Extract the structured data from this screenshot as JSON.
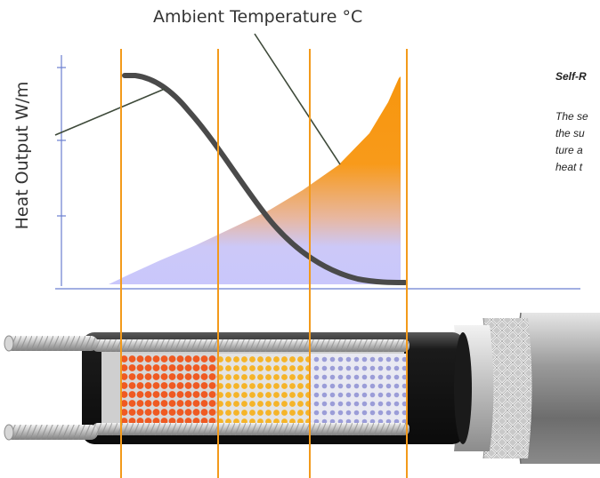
{
  "diagram": {
    "title": "Ambient Temperature °C",
    "y_axis_label": "Heat Output W/m",
    "side_heading": "Self-R",
    "side_lines": [
      "The se",
      "the su",
      "ture a",
      "heat t"
    ]
  },
  "colors": {
    "orange": "#f7960d",
    "lavender": "#ccc8f8",
    "axis": "#6b7fd0",
    "curve": "#4a4a4a",
    "hot_dots": "#ef5a22",
    "warm_dots": "#f5b429",
    "cool_dots": "#9b9dd8"
  },
  "icons": {
    "cable": "heating-cable-cutaway",
    "curve": "heat-output-curve"
  }
}
